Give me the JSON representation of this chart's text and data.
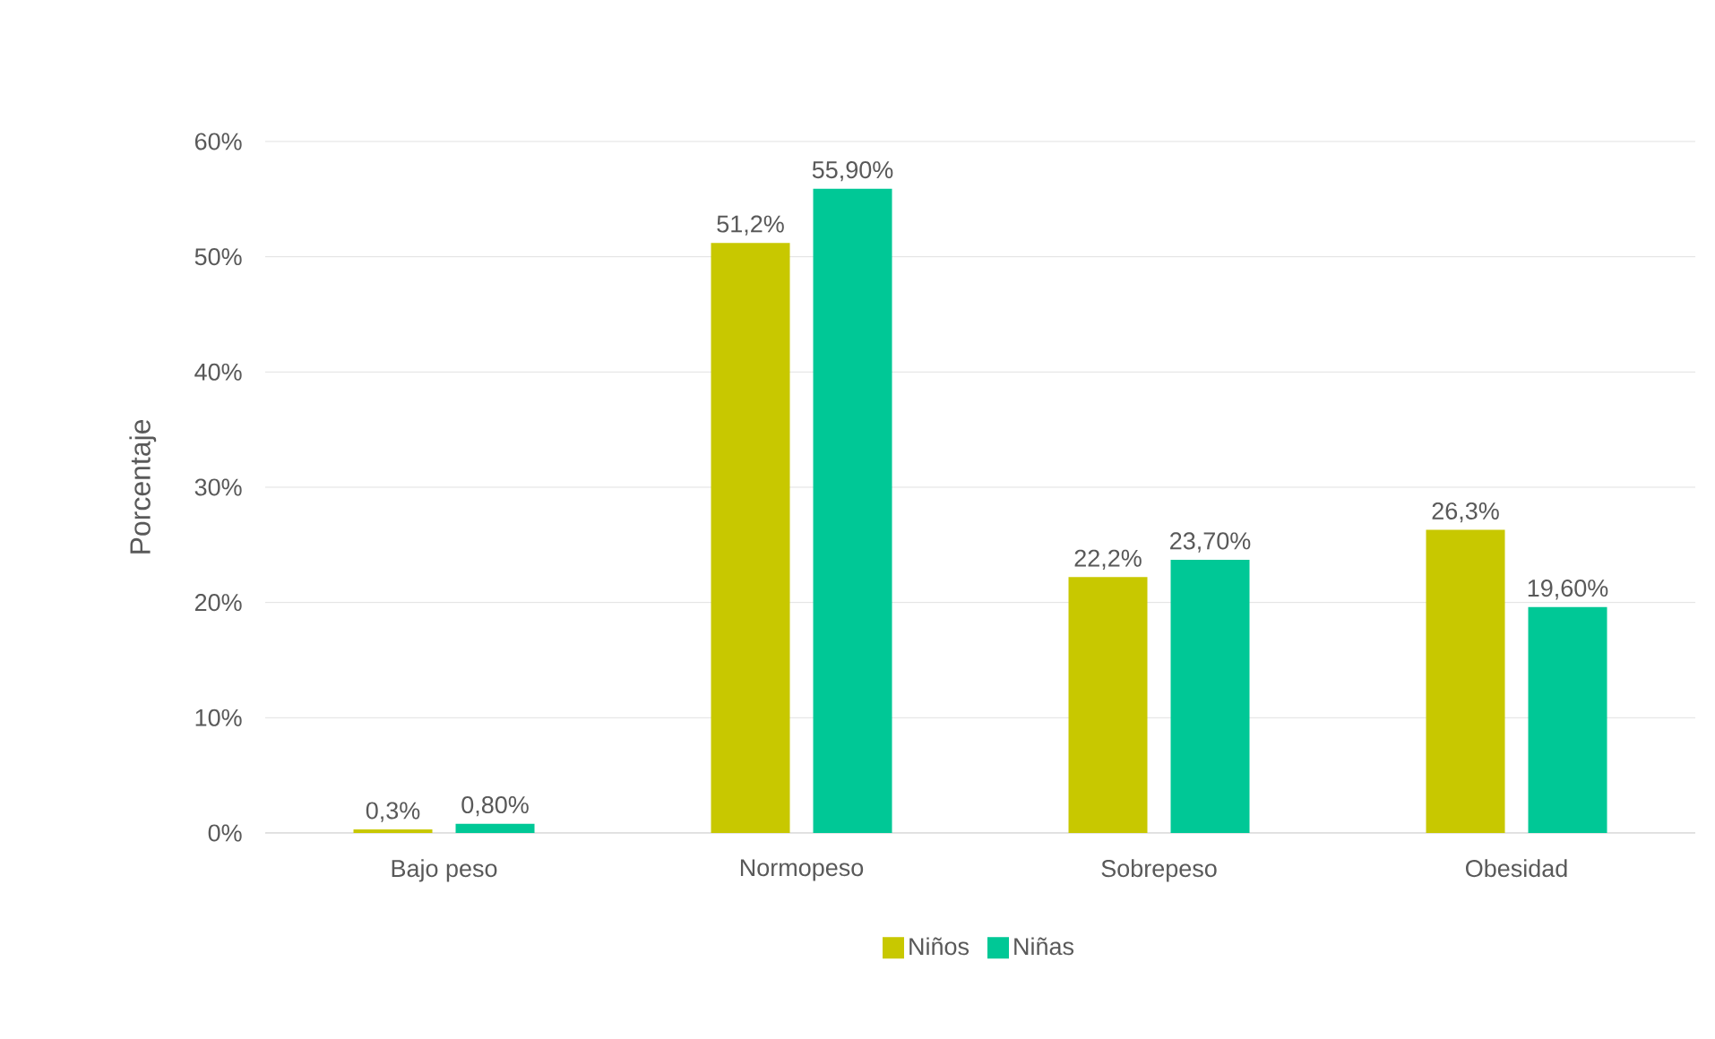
{
  "chart_data": {
    "type": "bar",
    "ylabel": "Porcentaje",
    "categories": [
      "Bajo peso",
      "Normopeso",
      "Sobrepeso",
      "Obesidad"
    ],
    "series": [
      {
        "name": "Niños",
        "color": "#c8c800",
        "values": [
          0.3,
          51.2,
          22.2,
          26.3
        ],
        "value_labels": [
          "0,3%",
          "51,2%",
          "22,2%",
          "26,3%"
        ]
      },
      {
        "name": "Niñas",
        "color": "#00c896",
        "values": [
          0.8,
          55.9,
          23.7,
          19.6
        ],
        "value_labels": [
          "0,80%",
          "55,90%",
          "23,70%",
          "19,60%"
        ]
      }
    ],
    "ylim": [
      0,
      60
    ],
    "yticks": [
      {
        "value": 0,
        "label": "0%"
      },
      {
        "value": 10,
        "label": "10%"
      },
      {
        "value": 20,
        "label": "20%"
      },
      {
        "value": 30,
        "label": "30%"
      },
      {
        "value": 40,
        "label": "40%"
      },
      {
        "value": 50,
        "label": "50%"
      },
      {
        "value": 60,
        "label": "60%"
      }
    ],
    "grid": "y",
    "legend": "bottom"
  }
}
